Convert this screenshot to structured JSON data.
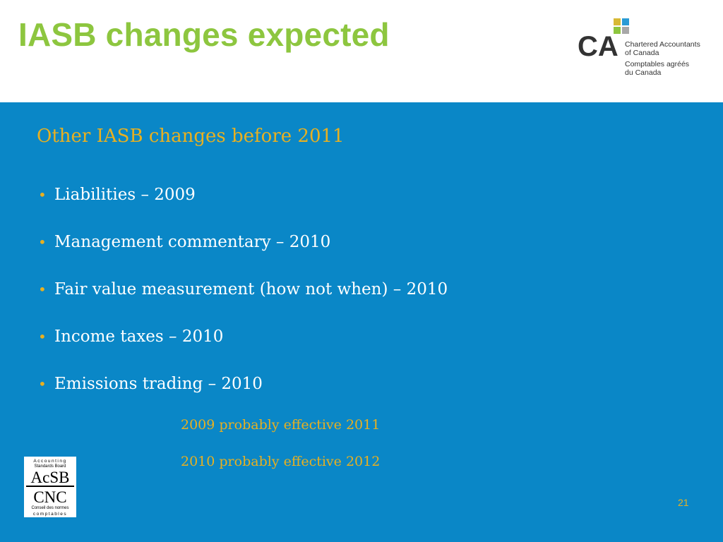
{
  "title": "IASB changes expected",
  "logo": {
    "mark": "CA",
    "name_en": [
      "Chartered Accountants",
      "of Canada"
    ],
    "name_fr": [
      "Comptables agréés",
      "du Canada"
    ]
  },
  "subtitle": "Other IASB changes before 2011",
  "bullets": [
    "Liabilities – 2009",
    "Management commentary – 2010",
    "Fair value measurement (how not when) – 2010",
    "Income taxes – 2010",
    "Emissions trading – 2010"
  ],
  "notes": [
    "2009 probably effective 2011",
    "2010 probably effective 2012"
  ],
  "acsb_logo": {
    "line1": "Accounting",
    "line2": "Standards Board",
    "abbr_en": "AcSB",
    "abbr_fr": "CNC",
    "line3": "Conseil des normes",
    "line4": "comptables"
  },
  "page_number": "21",
  "colors": {
    "title_green": "#8dc63f",
    "panel_blue": "#0a87c7",
    "accent_gold": "#e8b020"
  }
}
